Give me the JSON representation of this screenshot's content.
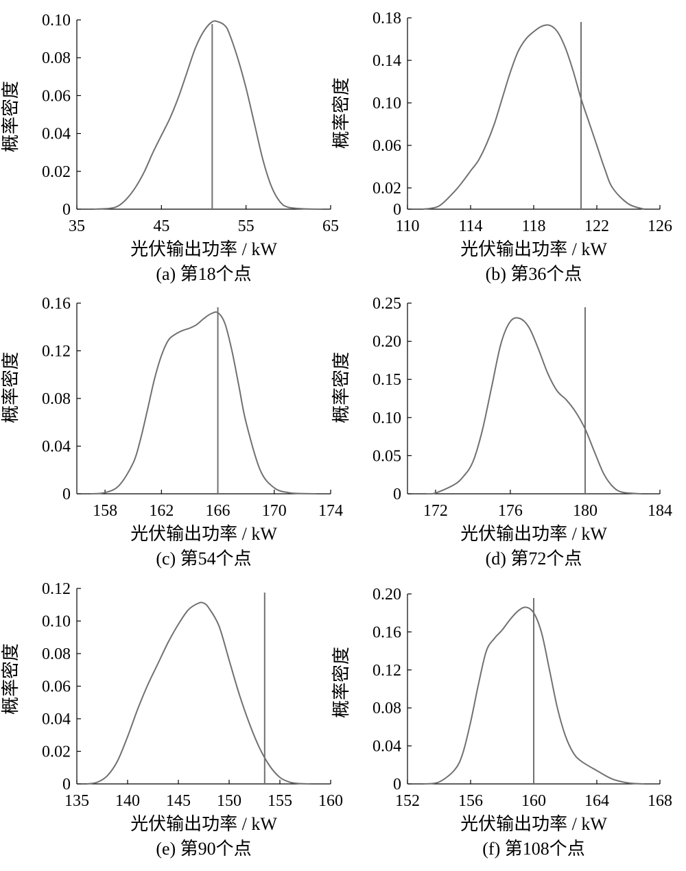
{
  "chart_data": [
    {
      "type": "line",
      "caption": "(a)  第18个点",
      "xlabel": "光伏输出功率 / kW",
      "ylabel": "概率密度",
      "xlim": [
        35,
        65
      ],
      "ylim": [
        0,
        0.1
      ],
      "xticks": [
        35,
        45,
        55,
        65
      ],
      "xtick_labels": [
        "35",
        "45",
        "55",
        "65"
      ],
      "yticks": [
        0,
        0.02,
        0.04,
        0.06,
        0.08,
        0.1
      ],
      "ytick_labels": [
        "0",
        "0.02",
        "0.04",
        "0.06",
        "0.08",
        "0.10"
      ],
      "actual_value": 51,
      "series": [
        {
          "x": [
            37,
            39,
            40,
            41,
            42,
            43,
            44,
            45,
            46,
            47,
            48,
            49,
            50,
            51,
            51.7,
            52.5,
            53,
            54,
            55,
            56,
            57,
            58,
            59,
            60,
            62,
            64
          ],
          "y": [
            0,
            0.0005,
            0.002,
            0.006,
            0.012,
            0.02,
            0.03,
            0.039,
            0.048,
            0.059,
            0.072,
            0.085,
            0.094,
            0.099,
            0.099,
            0.097,
            0.093,
            0.08,
            0.064,
            0.045,
            0.026,
            0.012,
            0.004,
            0.001,
            0.0002,
            0
          ]
        }
      ]
    },
    {
      "type": "line",
      "caption": "(b)  第36个点",
      "xlabel": "光伏输出功率 / kW",
      "ylabel": "概率密度",
      "xlim": [
        110,
        126
      ],
      "ylim": [
        0,
        0.18
      ],
      "xticks": [
        110,
        114,
        118,
        122,
        126
      ],
      "xtick_labels": [
        "110",
        "114",
        "118",
        "122",
        "126"
      ],
      "yticks": [
        0,
        0.02,
        0.06,
        0.1,
        0.14,
        0.18
      ],
      "ytick_labels": [
        "0",
        "0.02",
        "0.06",
        "0.10",
        "0.14",
        "0.18"
      ],
      "actual_value": 121,
      "series": [
        {
          "x": [
            111,
            112,
            113,
            113.5,
            114,
            114.5,
            115,
            115.5,
            116,
            116.5,
            117,
            117.5,
            118,
            118.5,
            119,
            119.5,
            120,
            120.5,
            121,
            121.5,
            122,
            122.5,
            123,
            124,
            125
          ],
          "y": [
            0,
            0.003,
            0.017,
            0.026,
            0.036,
            0.046,
            0.061,
            0.08,
            0.104,
            0.128,
            0.148,
            0.16,
            0.167,
            0.172,
            0.173,
            0.167,
            0.152,
            0.13,
            0.104,
            0.082,
            0.06,
            0.038,
            0.02,
            0.005,
            0
          ]
        }
      ]
    },
    {
      "type": "line",
      "caption": "(c)  第54个点",
      "xlabel": "光伏输出功率 / kW",
      "ylabel": "概率密度",
      "xlim": [
        156,
        174
      ],
      "ylim": [
        0,
        0.16
      ],
      "xticks": [
        158,
        162,
        166,
        170,
        174
      ],
      "xtick_labels": [
        "158",
        "162",
        "166",
        "170",
        "174"
      ],
      "yticks": [
        0,
        0.04,
        0.08,
        0.12,
        0.16
      ],
      "ytick_labels": [
        "0",
        "0.04",
        "0.08",
        "0.12",
        "0.16"
      ],
      "actual_value": 166,
      "series": [
        {
          "x": [
            157,
            158,
            159,
            160,
            160.5,
            161,
            161.5,
            162,
            162.5,
            163,
            163.5,
            164,
            164.5,
            165,
            165.5,
            166,
            166.5,
            167,
            167.5,
            168,
            169,
            170,
            171,
            172,
            173
          ],
          "y": [
            0,
            0.001,
            0.007,
            0.026,
            0.045,
            0.07,
            0.096,
            0.116,
            0.129,
            0.134,
            0.137,
            0.139,
            0.142,
            0.147,
            0.151,
            0.152,
            0.143,
            0.12,
            0.09,
            0.06,
            0.02,
            0.005,
            0.001,
            0.0002,
            0
          ]
        }
      ]
    },
    {
      "type": "line",
      "caption": "(d)  第72个点",
      "xlabel": "光伏输出功率 / kW",
      "ylabel": "概率密度",
      "xlim": [
        170.5,
        184
      ],
      "ylim": [
        0,
        0.25
      ],
      "xticks": [
        172,
        176,
        180,
        184
      ],
      "xtick_labels": [
        "172",
        "176",
        "180",
        "184"
      ],
      "yticks": [
        0,
        0.05,
        0.1,
        0.15,
        0.2,
        0.25
      ],
      "ytick_labels": [
        "0",
        "0.05",
        "0.10",
        "0.15",
        "0.20",
        "0.25"
      ],
      "actual_value": 180,
      "series": [
        {
          "x": [
            171.5,
            172,
            173,
            173.5,
            174,
            174.5,
            175,
            175.5,
            176,
            176.5,
            177,
            177.5,
            178,
            178.5,
            179,
            179.5,
            180,
            180.5,
            181,
            181.5,
            182,
            183
          ],
          "y": [
            0,
            0.001,
            0.012,
            0.023,
            0.042,
            0.083,
            0.14,
            0.197,
            0.226,
            0.23,
            0.218,
            0.19,
            0.158,
            0.135,
            0.123,
            0.107,
            0.085,
            0.055,
            0.026,
            0.009,
            0.002,
            0
          ]
        }
      ]
    },
    {
      "type": "line",
      "caption": "(e)  第90个点",
      "xlabel": "光伏输出功率 / kW",
      "ylabel": "概率密度",
      "xlim": [
        135,
        160
      ],
      "ylim": [
        0,
        0.12
      ],
      "xticks": [
        135,
        140,
        145,
        150,
        155,
        160
      ],
      "xtick_labels": [
        "135",
        "140",
        "145",
        "150",
        "155",
        "160"
      ],
      "yticks": [
        0,
        0.02,
        0.04,
        0.06,
        0.08,
        0.1,
        0.12
      ],
      "ytick_labels": [
        "0",
        "0.02",
        "0.04",
        "0.06",
        "0.08",
        "0.10",
        "0.12"
      ],
      "actual_value": 153.5,
      "series": [
        {
          "x": [
            136,
            137,
            138,
            139,
            140,
            141,
            142,
            143,
            144,
            145,
            146,
            147,
            147.5,
            148,
            149,
            150,
            151,
            152,
            153,
            154,
            155,
            156,
            157,
            158
          ],
          "y": [
            0,
            0.001,
            0.005,
            0.014,
            0.029,
            0.046,
            0.061,
            0.074,
            0.087,
            0.098,
            0.107,
            0.111,
            0.111,
            0.108,
            0.097,
            0.076,
            0.055,
            0.037,
            0.022,
            0.011,
            0.004,
            0.001,
            0.0002,
            0
          ]
        }
      ]
    },
    {
      "type": "line",
      "caption": "(f)  第108个点",
      "xlabel": "光伏输出功率 / kW",
      "ylabel": "概率密度",
      "xlim": [
        152,
        168
      ],
      "ylim": [
        0,
        0.2
      ],
      "xticks": [
        152,
        156,
        160,
        164,
        168
      ],
      "xtick_labels": [
        "152",
        "156",
        "160",
        "164",
        "168"
      ],
      "yticks": [
        0,
        0.04,
        0.08,
        0.12,
        0.16,
        0.2
      ],
      "ytick_labels": [
        "0",
        "0.04",
        "0.08",
        "0.12",
        "0.16",
        "0.20"
      ],
      "actual_value": 160,
      "series": [
        {
          "x": [
            153,
            154,
            155,
            155.5,
            156,
            156.5,
            157,
            157.5,
            158,
            158.5,
            159,
            159.5,
            160,
            160.5,
            161,
            161.5,
            162,
            162.5,
            163,
            164,
            165,
            166,
            167
          ],
          "y": [
            0,
            0.002,
            0.015,
            0.032,
            0.065,
            0.105,
            0.14,
            0.153,
            0.162,
            0.173,
            0.182,
            0.186,
            0.18,
            0.159,
            0.12,
            0.08,
            0.051,
            0.033,
            0.024,
            0.014,
            0.005,
            0.001,
            0
          ]
        }
      ]
    }
  ]
}
